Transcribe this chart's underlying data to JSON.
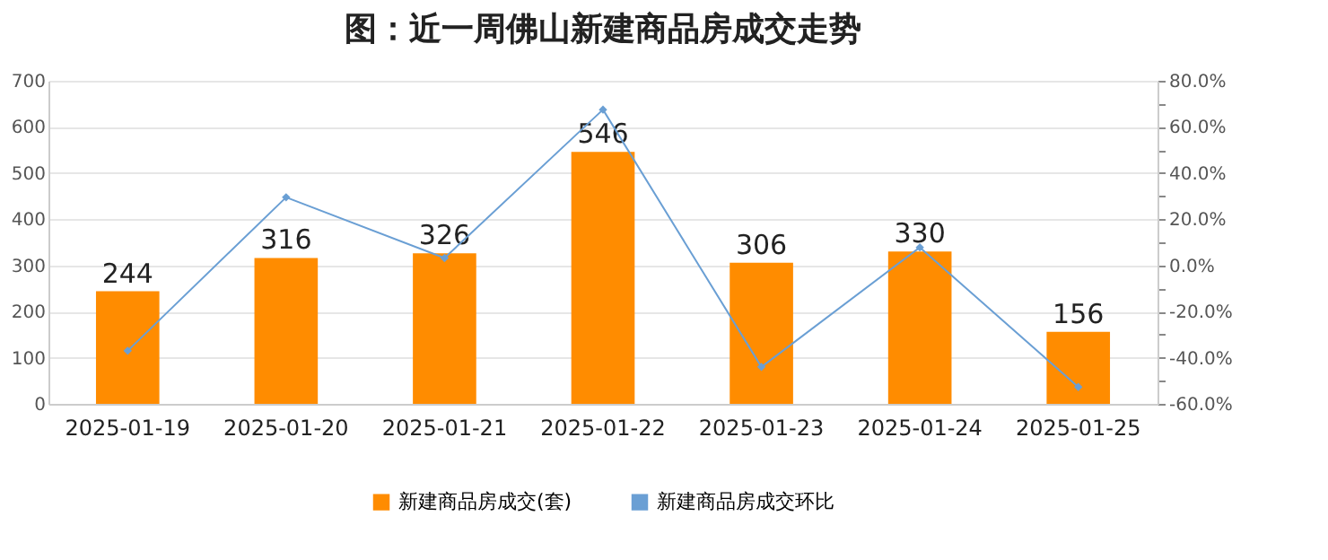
{
  "chart_data": {
    "type": "bar",
    "title": "图：近一周佛山新建商品房成交走势",
    "categories": [
      "2025-01-19",
      "2025-01-20",
      "2025-01-21",
      "2025-01-22",
      "2025-01-23",
      "2025-01-24",
      "2025-01-25"
    ],
    "series": [
      {
        "name": "新建商品房成交(套)",
        "color": "#ff8c00",
        "values": [
          244,
          316,
          326,
          546,
          306,
          330,
          156
        ],
        "value_labels": [
          "244",
          "316",
          "326",
          "546",
          "306",
          "330",
          "156"
        ]
      },
      {
        "name": "新建商品房成交环比",
        "type": "line",
        "axis": "y2",
        "color": "#6a9fd4",
        "values": [
          -37,
          29.5,
          3.2,
          67.5,
          -44,
          7.8,
          -52.7
        ]
      }
    ],
    "ylim": [
      0,
      700
    ],
    "yticks": [
      0,
      100,
      200,
      300,
      400,
      500,
      600,
      700
    ],
    "y2lim": [
      -60,
      80
    ],
    "y2ticks": [
      {
        "value": -60,
        "label": "-60.0%"
      },
      {
        "value": -50,
        "label": null
      },
      {
        "value": -40,
        "label": "-40.0%"
      },
      {
        "value": -30,
        "label": null
      },
      {
        "value": -20,
        "label": "-20.0%"
      },
      {
        "value": -10,
        "label": null
      },
      {
        "value": 0,
        "label": "0.0%"
      },
      {
        "value": 10,
        "label": null
      },
      {
        "value": 20,
        "label": "20.0%"
      },
      {
        "value": 30,
        "label": null
      },
      {
        "value": 40,
        "label": "40.0%"
      },
      {
        "value": 50,
        "label": null
      },
      {
        "value": 60,
        "label": "60.0%"
      },
      {
        "value": 70,
        "label": null
      },
      {
        "value": 80,
        "label": "80.0%"
      }
    ],
    "grid": "y",
    "legend": "bottom",
    "marker": "diamond",
    "line_style": "solid"
  }
}
